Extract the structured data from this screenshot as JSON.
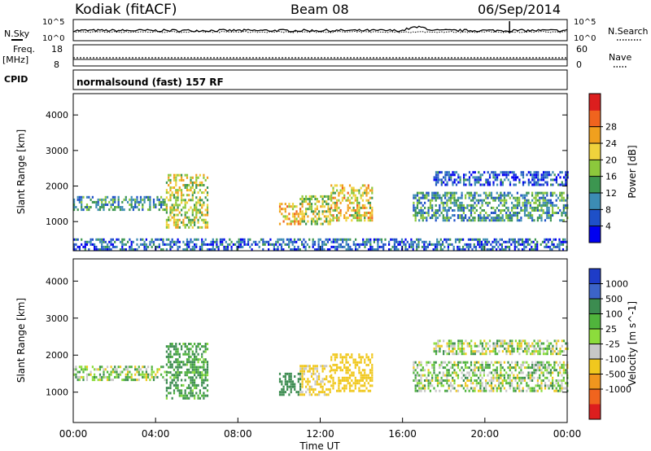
{
  "header": {
    "station": "Kodiak (fitACF)",
    "beam": "Beam 08",
    "date": "06/Sep/2014"
  },
  "panels": {
    "nsky_label": "N.Sky",
    "nsearch_label": "N.Search",
    "noise_left_top": "10^5",
    "noise_left_bottom": "10^0",
    "noise_right_top": "10^5",
    "noise_right_bottom": "10^0",
    "freq_label": "Freq.",
    "freq_unit": "[MHz]",
    "freq_top": "18",
    "freq_bottom": "8",
    "nave_label": "Nave",
    "nave_top": "60",
    "nave_bottom": "0",
    "cpid_label": "CPID",
    "cpid_value": "normalsound (fast) 157 RF"
  },
  "chart_data": [
    {
      "type": "heatmap",
      "name": "power",
      "ylabel": "Slant Range [km]",
      "yticks": [
        1000,
        2000,
        3000,
        4000
      ],
      "ylim": [
        180,
        4600
      ],
      "colorbar": {
        "label": "Power [dB]",
        "ticks": [
          "4",
          "8",
          "12",
          "16",
          "20",
          "24",
          "28"
        ],
        "colors": [
          "#0000f0",
          "#1e50c8",
          "#3c8cb4",
          "#3c9650",
          "#8cc83c",
          "#f0d23c",
          "#f0a01e",
          "#f0641e",
          "#dc1e1e"
        ]
      },
      "bands": [
        {
          "t": [
            0,
            4.5
          ],
          "r": [
            1300,
            1700
          ],
          "level": 12
        },
        {
          "t": [
            4.5,
            6.5
          ],
          "r": [
            800,
            2300
          ],
          "level": 20
        },
        {
          "t": [
            10,
            11
          ],
          "r": [
            900,
            1500
          ],
          "level": 24
        },
        {
          "t": [
            11,
            12.5
          ],
          "r": [
            900,
            1700
          ],
          "level": 20
        },
        {
          "t": [
            12.5,
            14.5
          ],
          "r": [
            1000,
            2000
          ],
          "level": 22
        },
        {
          "t": [
            16.5,
            24
          ],
          "r": [
            1000,
            1800
          ],
          "level": 12
        },
        {
          "t": [
            17.5,
            24
          ],
          "r": [
            2000,
            2400
          ],
          "level": 6
        },
        {
          "t": [
            0,
            24
          ],
          "r": [
            180,
            500
          ],
          "level": 8
        }
      ]
    },
    {
      "type": "heatmap",
      "name": "velocity",
      "ylabel": "Slant Range [km]",
      "yticks": [
        1000,
        2000,
        3000,
        4000
      ],
      "ylim": [
        180,
        4600
      ],
      "colorbar": {
        "label": "Velocity [m s^-1]",
        "ticks": [
          "1000",
          "500",
          "100",
          "25",
          "-25",
          "-100",
          "-500",
          "-1000"
        ],
        "colors": [
          "#1e3cc8",
          "#3c64c8",
          "#3c8c50",
          "#50b43c",
          "#8cdc3c",
          "#c8c8c8",
          "#f0c81e",
          "#f0961e",
          "#f0641e",
          "#dc1e1e"
        ]
      },
      "bands": [
        {
          "t": [
            0,
            4.5
          ],
          "r": [
            1300,
            1700
          ],
          "level": 0
        },
        {
          "t": [
            4.5,
            6.5
          ],
          "r": [
            800,
            2300
          ],
          "level": 150
        },
        {
          "t": [
            10,
            11
          ],
          "r": [
            900,
            1500
          ],
          "level": 300
        },
        {
          "t": [
            11,
            12.5
          ],
          "r": [
            900,
            1700
          ],
          "level": -200
        },
        {
          "t": [
            12.5,
            14.5
          ],
          "r": [
            1000,
            2000
          ],
          "level": -300
        },
        {
          "t": [
            16.5,
            24
          ],
          "r": [
            1000,
            1800
          ],
          "level": 0
        },
        {
          "t": [
            17.5,
            24
          ],
          "r": [
            2000,
            2400
          ],
          "level": 0
        }
      ]
    }
  ],
  "xaxis": {
    "label": "Time UT",
    "ticks": [
      "00:00",
      "04:00",
      "08:00",
      "12:00",
      "16:00",
      "20:00",
      "00:00"
    ]
  }
}
